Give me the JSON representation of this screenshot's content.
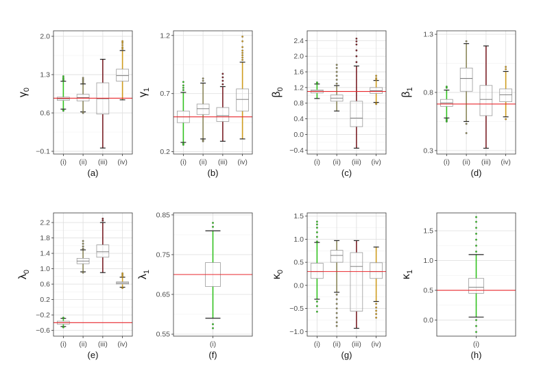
{
  "chart_data": [
    {
      "type": "box",
      "panel_label": "(a)",
      "ylabel": "γ0",
      "ylabel_base": "γ",
      "ylabel_sub": "0",
      "yticks": [
        -0.1,
        0.6,
        1.3,
        2.0
      ],
      "ytick_labels": [
        "−0.1",
        "0.6",
        "1.3",
        "2.0"
      ],
      "ylim": [
        -0.15,
        2.1
      ],
      "categories": [
        "(i)",
        "(ii)",
        "(iii)",
        "(iv)"
      ],
      "reference_line": 0.87,
      "boxes": [
        {
          "category": "(i)",
          "color": "#31c21f",
          "whisker_low": 0.67,
          "q1": 0.83,
          "median": 0.86,
          "q3": 0.89,
          "whisker_high": 1.18,
          "outliers": [
            0.64,
            0.65,
            1.2,
            1.22,
            1.24,
            1.27
          ]
        },
        {
          "category": "(ii)",
          "color": "#8b8659",
          "whisker_low": 0.62,
          "q1": 0.82,
          "median": 0.88,
          "q3": 0.94,
          "whisker_high": 1.13,
          "outliers": [
            0.6,
            0.61,
            1.15,
            1.18,
            1.21,
            1.24
          ]
        },
        {
          "category": "(iii)",
          "color": "#7a1f25",
          "whisker_low": -0.04,
          "q1": 0.58,
          "median": 0.86,
          "q3": 1.15,
          "whisker_high": 1.58,
          "outliers": []
        },
        {
          "category": "(iv)",
          "color": "#cf9c1e",
          "whisker_low": 0.84,
          "q1": 1.18,
          "median": 1.28,
          "q3": 1.4,
          "whisker_high": 1.74,
          "outliers": [
            1.77,
            1.8,
            1.84,
            1.88,
            1.91
          ]
        }
      ]
    },
    {
      "type": "box",
      "panel_label": "(b)",
      "ylabel": "γ1",
      "ylabel_base": "γ",
      "ylabel_sub": "1",
      "yticks": [
        0.2,
        0.7,
        1.2
      ],
      "ytick_labels": [
        "0.2",
        "0.7",
        "1.2"
      ],
      "ylim": [
        0.18,
        1.24
      ],
      "categories": [
        "(i)",
        "(ii)",
        "(iii)",
        "(iv)"
      ],
      "reference_line": 0.5,
      "boxes": [
        {
          "category": "(i)",
          "color": "#31c21f",
          "whisker_low": 0.28,
          "q1": 0.45,
          "median": 0.5,
          "q3": 0.55,
          "whisker_high": 0.71,
          "outliers": [
            0.26,
            0.27,
            0.73,
            0.75,
            0.77,
            0.8
          ]
        },
        {
          "category": "(ii)",
          "color": "#8b8659",
          "whisker_low": 0.31,
          "q1": 0.52,
          "median": 0.57,
          "q3": 0.61,
          "whisker_high": 0.79,
          "outliers": [
            0.29,
            0.3,
            0.81,
            0.83
          ]
        },
        {
          "category": "(iii)",
          "color": "#7a1f25",
          "whisker_low": 0.29,
          "q1": 0.46,
          "median": 0.51,
          "q3": 0.58,
          "whisker_high": 0.76,
          "outliers": [
            0.78,
            0.81,
            0.84,
            0.87
          ]
        },
        {
          "category": "(iv)",
          "color": "#cf9c1e",
          "whisker_low": 0.31,
          "q1": 0.55,
          "median": 0.65,
          "q3": 0.74,
          "whisker_high": 0.97,
          "outliers": [
            0.99,
            1.01,
            1.03,
            1.05,
            1.07,
            1.1,
            1.15,
            1.19
          ]
        }
      ]
    },
    {
      "type": "box",
      "panel_label": "(c)",
      "ylabel": "β0",
      "ylabel_base": "β",
      "ylabel_sub": "0",
      "yticks": [
        -0.4,
        0.0,
        0.4,
        0.8,
        1.2,
        1.6,
        2.0,
        2.4
      ],
      "ytick_labels": [
        "−0.4",
        "0.0",
        "0.4",
        "0.8",
        "1.2",
        "1.6",
        "2.0",
        "2.4"
      ],
      "ylim": [
        -0.5,
        2.65
      ],
      "categories": [
        "(i)",
        "(ii)",
        "(iii)",
        "(iv)"
      ],
      "reference_line": 1.1,
      "boxes": [
        {
          "category": "(i)",
          "color": "#31c21f",
          "whisker_low": 0.92,
          "q1": 1.06,
          "median": 1.11,
          "q3": 1.14,
          "whisker_high": 1.29,
          "outliers": [
            1.31,
            1.33
          ]
        },
        {
          "category": "(ii)",
          "color": "#8b8659",
          "whisker_low": 0.6,
          "q1": 0.85,
          "median": 0.93,
          "q3": 1.01,
          "whisker_high": 1.25,
          "outliers": [
            1.3,
            1.4,
            1.5,
            1.6,
            1.7,
            1.78
          ]
        },
        {
          "category": "(iii)",
          "color": "#7a1f25",
          "whisker_low": -0.35,
          "q1": 0.2,
          "median": 0.42,
          "q3": 0.85,
          "whisker_high": 1.75,
          "outliers": [
            1.85,
            2.0,
            2.15,
            2.3,
            2.38,
            2.45
          ]
        },
        {
          "category": "(iv)",
          "color": "#cf9c1e",
          "whisker_low": 0.82,
          "q1": 1.05,
          "median": 1.12,
          "q3": 1.2,
          "whisker_high": 1.38,
          "outliers": [
            0.8,
            0.78,
            1.4,
            1.44,
            1.5
          ]
        }
      ]
    },
    {
      "type": "box",
      "panel_label": "(d)",
      "ylabel": "β1",
      "ylabel_base": "β",
      "ylabel_sub": "1",
      "yticks": [
        0.3,
        0.8,
        1.3
      ],
      "ytick_labels": [
        "0.3",
        "0.8",
        "1.3"
      ],
      "ylim": [
        0.27,
        1.33
      ],
      "categories": [
        "(i)",
        "(ii)",
        "(iii)",
        "(iv)"
      ],
      "reference_line": 0.7,
      "boxes": [
        {
          "category": "(i)",
          "color": "#31c21f",
          "whisker_low": 0.58,
          "q1": 0.68,
          "median": 0.71,
          "q3": 0.74,
          "whisker_high": 0.82,
          "outliers": [
            0.55,
            0.56,
            0.57,
            0.84,
            0.85
          ]
        },
        {
          "category": "(ii)",
          "color": "#8b8659",
          "whisker_low": 0.55,
          "q1": 0.81,
          "median": 0.92,
          "q3": 1.01,
          "whisker_high": 1.22,
          "outliers": [
            0.53,
            0.45,
            1.24
          ]
        },
        {
          "category": "(iii)",
          "color": "#7a1f25",
          "whisker_low": 0.32,
          "q1": 0.6,
          "median": 0.74,
          "q3": 0.86,
          "whisker_high": 1.2,
          "outliers": []
        },
        {
          "category": "(iv)",
          "color": "#cf9c1e",
          "whisker_low": 0.59,
          "q1": 0.72,
          "median": 0.78,
          "q3": 0.83,
          "whisker_high": 0.98,
          "outliers": [
            0.57,
            1.0,
            1.02
          ]
        }
      ]
    },
    {
      "type": "box",
      "panel_label": "(e)",
      "ylabel": "λ0",
      "ylabel_base": "λ",
      "ylabel_sub": "0",
      "yticks": [
        -0.6,
        -0.2,
        0.2,
        0.6,
        1.0,
        1.4,
        1.8,
        2.2
      ],
      "ytick_labels": [
        "−0.6",
        "−0.2",
        "0.2",
        "0.6",
        "1.0",
        "1.4",
        "1.8",
        "2.2"
      ],
      "ylim": [
        -0.75,
        2.45
      ],
      "categories": [
        "(i)",
        "(ii)",
        "(iii)",
        "(iv)"
      ],
      "reference_line": -0.4,
      "boxes": [
        {
          "category": "(i)",
          "color": "#31c21f",
          "whisker_low": -0.5,
          "q1": -0.44,
          "median": -0.4,
          "q3": -0.36,
          "whisker_high": -0.29,
          "outliers": [
            -0.52,
            -0.27
          ]
        },
        {
          "category": "(ii)",
          "color": "#8b8659",
          "whisker_low": 0.92,
          "q1": 1.13,
          "median": 1.2,
          "q3": 1.27,
          "whisker_high": 1.49,
          "outliers": [
            0.9,
            1.52,
            1.58,
            1.65,
            1.72
          ]
        },
        {
          "category": "(iii)",
          "color": "#7a1f25",
          "whisker_low": 0.9,
          "q1": 1.3,
          "median": 1.44,
          "q3": 1.62,
          "whisker_high": 2.2,
          "outliers": [
            2.25,
            2.3
          ]
        },
        {
          "category": "(iv)",
          "color": "#cf9c1e",
          "whisker_low": 0.52,
          "q1": 0.6,
          "median": 0.63,
          "q3": 0.66,
          "whisker_high": 0.78,
          "outliers": [
            0.5,
            0.8,
            0.84,
            0.88
          ]
        }
      ]
    },
    {
      "type": "box",
      "panel_label": "(f)",
      "ylabel": "λ1",
      "ylabel_base": "λ",
      "ylabel_sub": "1",
      "yticks": [
        0.55,
        0.65,
        0.75,
        0.85
      ],
      "ytick_labels": [
        "0.55",
        "0.65",
        "0.75",
        "0.85"
      ],
      "ylim": [
        0.545,
        0.855
      ],
      "categories": [
        "(i)"
      ],
      "reference_line": 0.7,
      "boxes": [
        {
          "category": "(i)",
          "color": "#31c21f",
          "whisker_low": 0.59,
          "q1": 0.67,
          "median": 0.7,
          "q3": 0.73,
          "whisker_high": 0.81,
          "outliers": [
            0.575,
            0.565,
            0.82,
            0.83
          ]
        }
      ]
    },
    {
      "type": "box",
      "panel_label": "(g)",
      "ylabel": "κ0",
      "ylabel_base": "κ",
      "ylabel_sub": "0",
      "yticks": [
        -1.0,
        -0.5,
        0.0,
        0.5,
        1.0,
        1.5
      ],
      "ytick_labels": [
        "−1.0",
        "−0.5",
        "0.0",
        "0.5",
        "1.0",
        "1.5"
      ],
      "ylim": [
        -1.1,
        1.57
      ],
      "categories": [
        "(i)",
        "(ii)",
        "(iii)",
        "(iv)"
      ],
      "reference_line": 0.3,
      "boxes": [
        {
          "category": "(i)",
          "color": "#31c21f",
          "whisker_low": -0.3,
          "q1": 0.15,
          "median": 0.3,
          "q3": 0.48,
          "whisker_high": 0.93,
          "outliers": [
            -0.35,
            -0.45,
            -0.57,
            0.95,
            1.05,
            1.15,
            1.25,
            1.32,
            1.38
          ]
        },
        {
          "category": "(ii)",
          "color": "#8b8659",
          "whisker_low": -0.15,
          "q1": 0.5,
          "median": 0.65,
          "q3": 0.76,
          "whisker_high": 0.97,
          "outliers": [
            -0.2,
            -0.3,
            -0.4,
            -0.5,
            -0.6,
            -0.7,
            -0.8,
            -0.88
          ]
        },
        {
          "category": "(iii)",
          "color": "#7a1f25",
          "whisker_low": -0.93,
          "q1": -0.56,
          "median": 0.41,
          "q3": 0.71,
          "whisker_high": 0.97,
          "outliers": []
        },
        {
          "category": "(iv)",
          "color": "#cf9c1e",
          "whisker_low": -0.35,
          "q1": 0.15,
          "median": 0.3,
          "q3": 0.49,
          "whisker_high": 0.83,
          "outliers": [
            -0.4,
            -0.48,
            -0.55,
            -0.62,
            -0.7
          ]
        }
      ]
    },
    {
      "type": "box",
      "panel_label": "(h)",
      "ylabel": "κ1",
      "ylabel_base": "κ",
      "ylabel_sub": "1",
      "yticks": [
        0.0,
        0.5,
        1.0,
        1.5
      ],
      "ytick_labels": [
        "0.0",
        "0.5",
        "1.0",
        "1.5"
      ],
      "ylim": [
        -0.27,
        1.8
      ],
      "categories": [
        "(i)"
      ],
      "reference_line": 0.5,
      "boxes": [
        {
          "category": "(i)",
          "color": "#31c21f",
          "whisker_low": 0.05,
          "q1": 0.45,
          "median": 0.55,
          "q3": 0.7,
          "whisker_high": 1.1,
          "outliers": [
            0.0,
            -0.1,
            -0.2,
            1.15,
            1.25,
            1.35,
            1.45,
            1.55,
            1.65,
            1.73
          ]
        }
      ]
    }
  ]
}
